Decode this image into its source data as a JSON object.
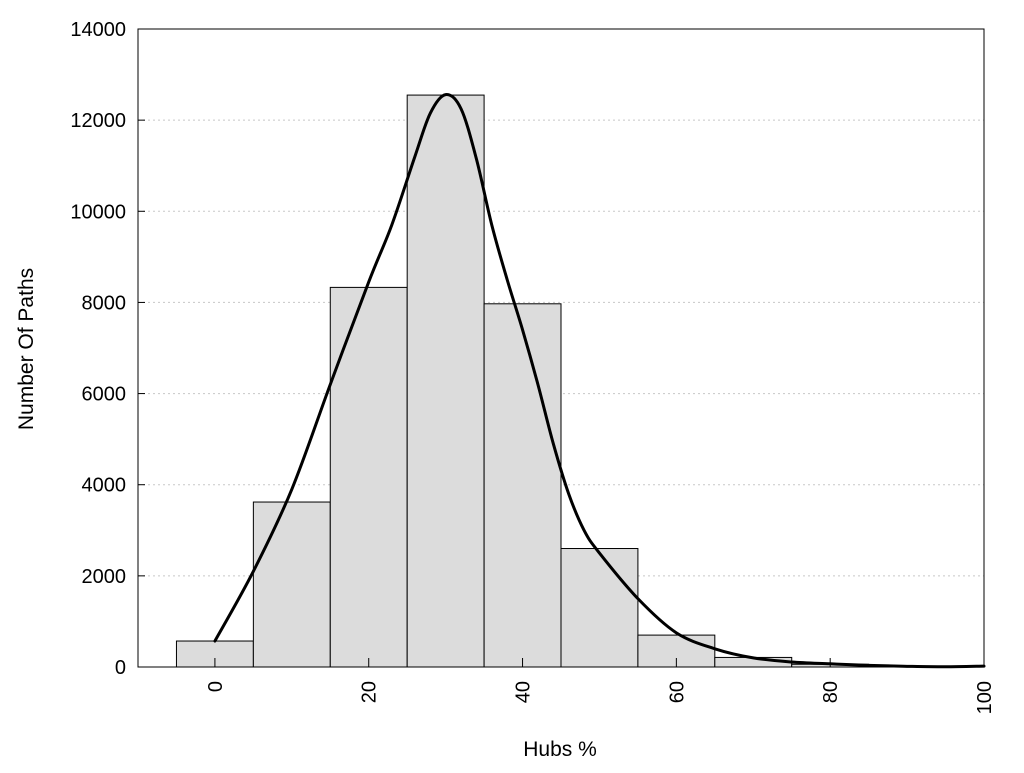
{
  "chart_data": {
    "type": "bar",
    "title": "",
    "xlabel": "Hubs %",
    "ylabel": "Number Of Paths",
    "xlim": [
      -10,
      100
    ],
    "ylim": [
      0,
      14000
    ],
    "x_ticks": [
      0,
      20,
      40,
      60,
      80,
      100
    ],
    "y_ticks": [
      0,
      2000,
      4000,
      6000,
      8000,
      10000,
      12000,
      14000
    ],
    "grid": "horizontal dotted",
    "legend": "none",
    "bin_width": 10,
    "bins": [
      {
        "center": 0,
        "value": 570
      },
      {
        "center": 10,
        "value": 3620
      },
      {
        "center": 20,
        "value": 8330
      },
      {
        "center": 30,
        "value": 12550
      },
      {
        "center": 40,
        "value": 7970
      },
      {
        "center": 50,
        "value": 2600
      },
      {
        "center": 60,
        "value": 700
      },
      {
        "center": 70,
        "value": 210
      },
      {
        "center": 80,
        "value": 60
      },
      {
        "center": 90,
        "value": 20
      }
    ],
    "density_curve": {
      "x": [
        0,
        5,
        10,
        15,
        20,
        23,
        26,
        28,
        30,
        32,
        34,
        36,
        38,
        40,
        42,
        44,
        46,
        48,
        50,
        55,
        60,
        65,
        70,
        75,
        80,
        85,
        90,
        95,
        100
      ],
      "y": [
        570,
        2100,
        3900,
        6200,
        8450,
        9700,
        11200,
        12150,
        12560,
        12250,
        11150,
        9700,
        8500,
        7400,
        6200,
        4900,
        3800,
        3000,
        2500,
        1500,
        750,
        400,
        200,
        110,
        70,
        35,
        15,
        5,
        20
      ]
    },
    "colors": {
      "bar_fill": "#dcdcdc",
      "curve": "#000000",
      "grid": "#c8c8c8"
    }
  }
}
